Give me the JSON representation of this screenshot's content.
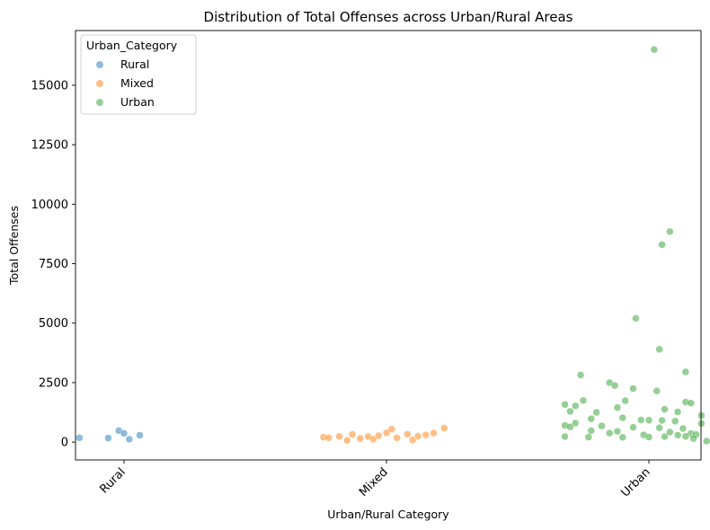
{
  "chart_data": {
    "type": "scatter",
    "title": "Distribution of Total Offenses across Urban/Rural Areas",
    "xlabel": "Urban/Rural Category",
    "ylabel": "Total Offenses",
    "categories": [
      "Rural",
      "Mixed",
      "Urban"
    ],
    "ylim": [
      -750,
      17300
    ],
    "yticks": [
      0,
      2500,
      5000,
      7500,
      10000,
      12500,
      15000
    ],
    "grid": false,
    "legend": {
      "title": "Urban_Category",
      "placement": "top-left",
      "entries": [
        "Rural",
        "Mixed",
        "Urban"
      ]
    },
    "series": [
      {
        "name": "Rural",
        "color": "#1f77b4",
        "points": [
          {
            "x": -0.17,
            "y": 180
          },
          {
            "x": -0.06,
            "y": 170
          },
          {
            "x": -0.02,
            "y": 480
          },
          {
            "x": 0.0,
            "y": 370
          },
          {
            "x": 0.02,
            "y": 120
          },
          {
            "x": 0.06,
            "y": 290
          }
        ]
      },
      {
        "name": "Mixed",
        "color": "#ff7f0e",
        "points": [
          {
            "x": -0.24,
            "y": 210
          },
          {
            "x": -0.22,
            "y": 180
          },
          {
            "x": -0.18,
            "y": 240
          },
          {
            "x": -0.15,
            "y": 70
          },
          {
            "x": -0.13,
            "y": 320
          },
          {
            "x": -0.1,
            "y": 150
          },
          {
            "x": -0.07,
            "y": 230
          },
          {
            "x": -0.05,
            "y": 120
          },
          {
            "x": -0.03,
            "y": 270
          },
          {
            "x": 0.0,
            "y": 390
          },
          {
            "x": 0.02,
            "y": 540
          },
          {
            "x": 0.04,
            "y": 180
          },
          {
            "x": 0.08,
            "y": 330
          },
          {
            "x": 0.1,
            "y": 90
          },
          {
            "x": 0.12,
            "y": 250
          },
          {
            "x": 0.15,
            "y": 300
          },
          {
            "x": 0.18,
            "y": 380
          },
          {
            "x": 0.22,
            "y": 590
          }
        ]
      },
      {
        "name": "Urban",
        "color": "#2ca02c",
        "points": [
          {
            "x": 0.02,
            "y": 16500
          },
          {
            "x": 0.08,
            "y": 8850
          },
          {
            "x": 0.05,
            "y": 8300
          },
          {
            "x": -0.05,
            "y": 5200
          },
          {
            "x": 0.04,
            "y": 3900
          },
          {
            "x": 0.14,
            "y": 2950
          },
          {
            "x": -0.26,
            "y": 2820
          },
          {
            "x": -0.15,
            "y": 2500
          },
          {
            "x": -0.13,
            "y": 2380
          },
          {
            "x": -0.06,
            "y": 2250
          },
          {
            "x": 0.03,
            "y": 2150
          },
          {
            "x": -0.25,
            "y": 1750
          },
          {
            "x": -0.09,
            "y": 1740
          },
          {
            "x": 0.14,
            "y": 1680
          },
          {
            "x": 0.16,
            "y": 1640
          },
          {
            "x": -0.32,
            "y": 1580
          },
          {
            "x": -0.28,
            "y": 1520
          },
          {
            "x": -0.12,
            "y": 1450
          },
          {
            "x": 0.06,
            "y": 1380
          },
          {
            "x": -0.3,
            "y": 1290
          },
          {
            "x": -0.2,
            "y": 1250
          },
          {
            "x": 0.11,
            "y": 1270
          },
          {
            "x": 0.2,
            "y": 1120
          },
          {
            "x": -0.1,
            "y": 1020
          },
          {
            "x": -0.22,
            "y": 980
          },
          {
            "x": -0.03,
            "y": 930
          },
          {
            "x": 0.0,
            "y": 920
          },
          {
            "x": 0.05,
            "y": 910
          },
          {
            "x": 0.1,
            "y": 880
          },
          {
            "x": -0.28,
            "y": 800
          },
          {
            "x": 0.2,
            "y": 780
          },
          {
            "x": -0.32,
            "y": 700
          },
          {
            "x": -0.18,
            "y": 680
          },
          {
            "x": -0.3,
            "y": 640
          },
          {
            "x": -0.06,
            "y": 620
          },
          {
            "x": 0.04,
            "y": 600
          },
          {
            "x": 0.13,
            "y": 570
          },
          {
            "x": -0.22,
            "y": 480
          },
          {
            "x": -0.12,
            "y": 450
          },
          {
            "x": 0.08,
            "y": 420
          },
          {
            "x": -0.15,
            "y": 380
          },
          {
            "x": 0.16,
            "y": 360
          },
          {
            "x": 0.18,
            "y": 320
          },
          {
            "x": -0.02,
            "y": 300
          },
          {
            "x": 0.11,
            "y": 290
          },
          {
            "x": -0.32,
            "y": 230
          },
          {
            "x": -0.23,
            "y": 210
          },
          {
            "x": -0.1,
            "y": 200
          },
          {
            "x": 0.0,
            "y": 210
          },
          {
            "x": 0.06,
            "y": 230
          },
          {
            "x": 0.14,
            "y": 240
          },
          {
            "x": 0.17,
            "y": 150
          },
          {
            "x": 0.22,
            "y": 40
          }
        ]
      }
    ]
  }
}
